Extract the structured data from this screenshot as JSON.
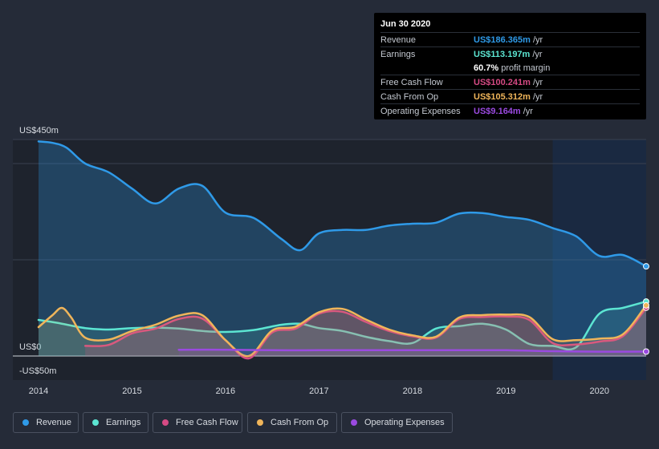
{
  "chart_data": {
    "type": "area",
    "title": "",
    "ylim": [
      -50,
      450
    ],
    "y_ticks": [
      {
        "value": 450,
        "label": "US$450m"
      },
      {
        "value": 0,
        "label": "US$0"
      },
      {
        "value": -50,
        "label": "-US$50m"
      }
    ],
    "x_ticks": [
      {
        "value": 2014,
        "label": "2014"
      },
      {
        "value": 2015,
        "label": "2015"
      },
      {
        "value": 2016,
        "label": "2016"
      },
      {
        "value": 2017,
        "label": "2017"
      },
      {
        "value": 2018,
        "label": "2018"
      },
      {
        "value": 2019,
        "label": "2019"
      },
      {
        "value": 2020,
        "label": "2020"
      }
    ],
    "xlim": [
      2013.73,
      2020.5
    ],
    "forecast_start": 2019.5,
    "series": [
      {
        "name": "Revenue",
        "color": "#2f9ae8",
        "points": [
          [
            2014,
            446
          ],
          [
            2014.15,
            443
          ],
          [
            2014.3,
            433
          ],
          [
            2014.5,
            400
          ],
          [
            2014.75,
            382
          ],
          [
            2015.0,
            348
          ],
          [
            2015.25,
            317
          ],
          [
            2015.5,
            348
          ],
          [
            2015.75,
            354
          ],
          [
            2016.0,
            298
          ],
          [
            2016.3,
            287
          ],
          [
            2016.6,
            243
          ],
          [
            2016.8,
            220
          ],
          [
            2017.0,
            255
          ],
          [
            2017.25,
            262
          ],
          [
            2017.5,
            262
          ],
          [
            2017.75,
            271
          ],
          [
            2018.0,
            275
          ],
          [
            2018.25,
            277
          ],
          [
            2018.5,
            296
          ],
          [
            2018.75,
            297
          ],
          [
            2019.0,
            289
          ],
          [
            2019.25,
            283
          ],
          [
            2019.5,
            266
          ],
          [
            2019.75,
            249
          ],
          [
            2020.0,
            208
          ],
          [
            2020.25,
            210
          ],
          [
            2020.5,
            186.365
          ]
        ]
      },
      {
        "name": "Earnings",
        "color": "#5ce5d2",
        "points": [
          [
            2014,
            75
          ],
          [
            2014.2,
            69
          ],
          [
            2014.5,
            58
          ],
          [
            2014.75,
            55
          ],
          [
            2015.0,
            58
          ],
          [
            2015.25,
            59
          ],
          [
            2015.5,
            57
          ],
          [
            2015.75,
            52
          ],
          [
            2016.0,
            50
          ],
          [
            2016.3,
            54
          ],
          [
            2016.6,
            65
          ],
          [
            2016.8,
            67
          ],
          [
            2017.0,
            58
          ],
          [
            2017.25,
            52
          ],
          [
            2017.5,
            40
          ],
          [
            2017.75,
            31
          ],
          [
            2018.0,
            27
          ],
          [
            2018.25,
            57
          ],
          [
            2018.5,
            62
          ],
          [
            2018.75,
            67
          ],
          [
            2019.0,
            55
          ],
          [
            2019.25,
            25
          ],
          [
            2019.5,
            21
          ],
          [
            2019.75,
            18
          ],
          [
            2020.0,
            88
          ],
          [
            2020.25,
            100
          ],
          [
            2020.5,
            113.197
          ]
        ]
      },
      {
        "name": "Free Cash Flow",
        "color": "#d64a84",
        "points": [
          [
            2014.5,
            21
          ],
          [
            2014.75,
            23
          ],
          [
            2015.0,
            47
          ],
          [
            2015.25,
            57
          ],
          [
            2015.5,
            77
          ],
          [
            2015.75,
            78
          ],
          [
            2016.0,
            33
          ],
          [
            2016.25,
            -5
          ],
          [
            2016.5,
            49
          ],
          [
            2016.75,
            57
          ],
          [
            2017.0,
            88
          ],
          [
            2017.25,
            92
          ],
          [
            2017.5,
            71
          ],
          [
            2017.75,
            52
          ],
          [
            2018.0,
            41
          ],
          [
            2018.25,
            38
          ],
          [
            2018.5,
            77
          ],
          [
            2018.75,
            81
          ],
          [
            2019.0,
            82
          ],
          [
            2019.25,
            75
          ],
          [
            2019.5,
            27
          ],
          [
            2019.75,
            24
          ],
          [
            2020.0,
            30
          ],
          [
            2020.25,
            41
          ],
          [
            2020.5,
            100.241
          ]
        ]
      },
      {
        "name": "Cash From Op",
        "color": "#f0b55a",
        "points": [
          [
            2014,
            60
          ],
          [
            2014.15,
            85
          ],
          [
            2014.25,
            100
          ],
          [
            2014.35,
            80
          ],
          [
            2014.5,
            38
          ],
          [
            2014.75,
            34
          ],
          [
            2015.0,
            52
          ],
          [
            2015.25,
            65
          ],
          [
            2015.5,
            84
          ],
          [
            2015.75,
            85
          ],
          [
            2016.0,
            33
          ],
          [
            2016.25,
            0
          ],
          [
            2016.5,
            53
          ],
          [
            2016.75,
            61
          ],
          [
            2017.0,
            91
          ],
          [
            2017.25,
            98
          ],
          [
            2017.5,
            76
          ],
          [
            2017.75,
            55
          ],
          [
            2018.0,
            43
          ],
          [
            2018.25,
            40
          ],
          [
            2018.5,
            80
          ],
          [
            2018.75,
            85
          ],
          [
            2019.0,
            86
          ],
          [
            2019.25,
            81
          ],
          [
            2019.5,
            35
          ],
          [
            2019.75,
            33
          ],
          [
            2020.0,
            36
          ],
          [
            2020.25,
            45
          ],
          [
            2020.5,
            105.312
          ]
        ]
      },
      {
        "name": "Operating Expenses",
        "color": "#9a4ae0",
        "points": [
          [
            2015.5,
            13
          ],
          [
            2016.0,
            13
          ],
          [
            2016.5,
            12
          ],
          [
            2017.0,
            12
          ],
          [
            2017.5,
            12
          ],
          [
            2018.0,
            12
          ],
          [
            2018.5,
            12
          ],
          [
            2019.0,
            12
          ],
          [
            2019.5,
            10
          ],
          [
            2020.0,
            9
          ],
          [
            2020.5,
            9.164
          ]
        ]
      }
    ]
  },
  "tooltip": {
    "date": "Jun 30 2020",
    "rows": [
      {
        "label": "Revenue",
        "value": "US$186.365m",
        "unit": "/yr",
        "color": "#2f9ae8"
      },
      {
        "label": "Earnings",
        "value": "US$113.197m",
        "unit": "/yr",
        "color": "#5ce5d2"
      },
      {
        "label": "",
        "value": "60.7%",
        "unit": "profit margin",
        "color": "#ffffff"
      },
      {
        "label": "Free Cash Flow",
        "value": "US$100.241m",
        "unit": "/yr",
        "color": "#d64a84"
      },
      {
        "label": "Cash From Op",
        "value": "US$105.312m",
        "unit": "/yr",
        "color": "#f0b55a"
      },
      {
        "label": "Operating Expenses",
        "value": "US$9.164m",
        "unit": "/yr",
        "color": "#9a4ae0"
      }
    ]
  },
  "legend": [
    {
      "label": "Revenue",
      "color": "#2f9ae8"
    },
    {
      "label": "Earnings",
      "color": "#5ce5d2"
    },
    {
      "label": "Free Cash Flow",
      "color": "#d64a84"
    },
    {
      "label": "Cash From Op",
      "color": "#f0b55a"
    },
    {
      "label": "Operating Expenses",
      "color": "#9a4ae0"
    }
  ]
}
